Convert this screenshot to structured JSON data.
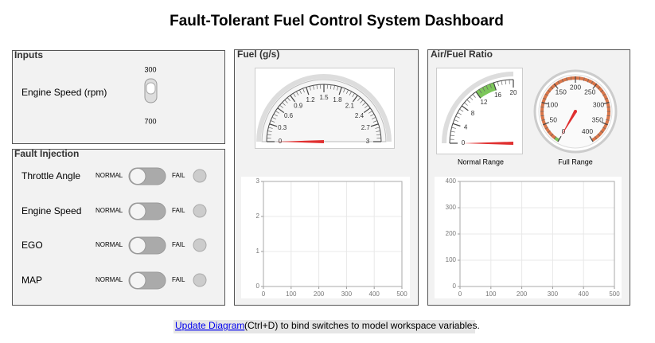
{
  "title": "Fault-Tolerant Fuel Control System Dashboard",
  "inputs": {
    "title": "Inputs",
    "label": "Engine Speed (rpm)",
    "switch_top": "300",
    "switch_bottom": "700"
  },
  "fault_injection": {
    "title": "Fault Injection",
    "rows": [
      {
        "label": "Throttle Angle",
        "normal": "NORMAL",
        "fail": "FAIL"
      },
      {
        "label": "Engine Speed",
        "normal": "NORMAL",
        "fail": "FAIL"
      },
      {
        "label": "EGO",
        "normal": "NORMAL",
        "fail": "FAIL"
      },
      {
        "label": "MAP",
        "normal": "NORMAL",
        "fail": "FAIL"
      }
    ]
  },
  "fuel": {
    "title": "Fuel (g/s)",
    "gauge": {
      "range": [
        0,
        3
      ],
      "ticks": [
        0,
        0.3,
        0.6,
        0.9,
        1.2,
        1.5,
        1.8,
        2.1,
        2.4,
        2.7,
        3
      ],
      "value": 0
    },
    "plot": {
      "xlim": [
        0,
        500
      ],
      "xticks": [
        0,
        100,
        200,
        300,
        400,
        500
      ],
      "ylim": [
        0,
        3
      ],
      "yticks": [
        0,
        1,
        2,
        3
      ]
    }
  },
  "air_fuel": {
    "title": "Air/Fuel Ratio",
    "normal_gauge": {
      "label": "Normal Range",
      "range": [
        0,
        20
      ],
      "ticks": [
        0,
        4,
        8,
        12,
        16,
        20
      ],
      "band": [
        12,
        16
      ],
      "value": 0
    },
    "full_gauge": {
      "label": "Full Range",
      "range": [
        0,
        400
      ],
      "ticks": [
        0,
        50,
        100,
        150,
        200,
        250,
        300,
        350,
        400
      ],
      "value": 0
    },
    "plot": {
      "xlim": [
        0,
        500
      ],
      "xticks": [
        0,
        100,
        200,
        300,
        400,
        500
      ],
      "ylim": [
        0,
        400
      ],
      "yticks": [
        0,
        100,
        200,
        300,
        400
      ]
    }
  },
  "footer": {
    "link": "Update Diagram",
    "text": "(Ctrl+D) to bind switches to model workspace variables."
  }
}
